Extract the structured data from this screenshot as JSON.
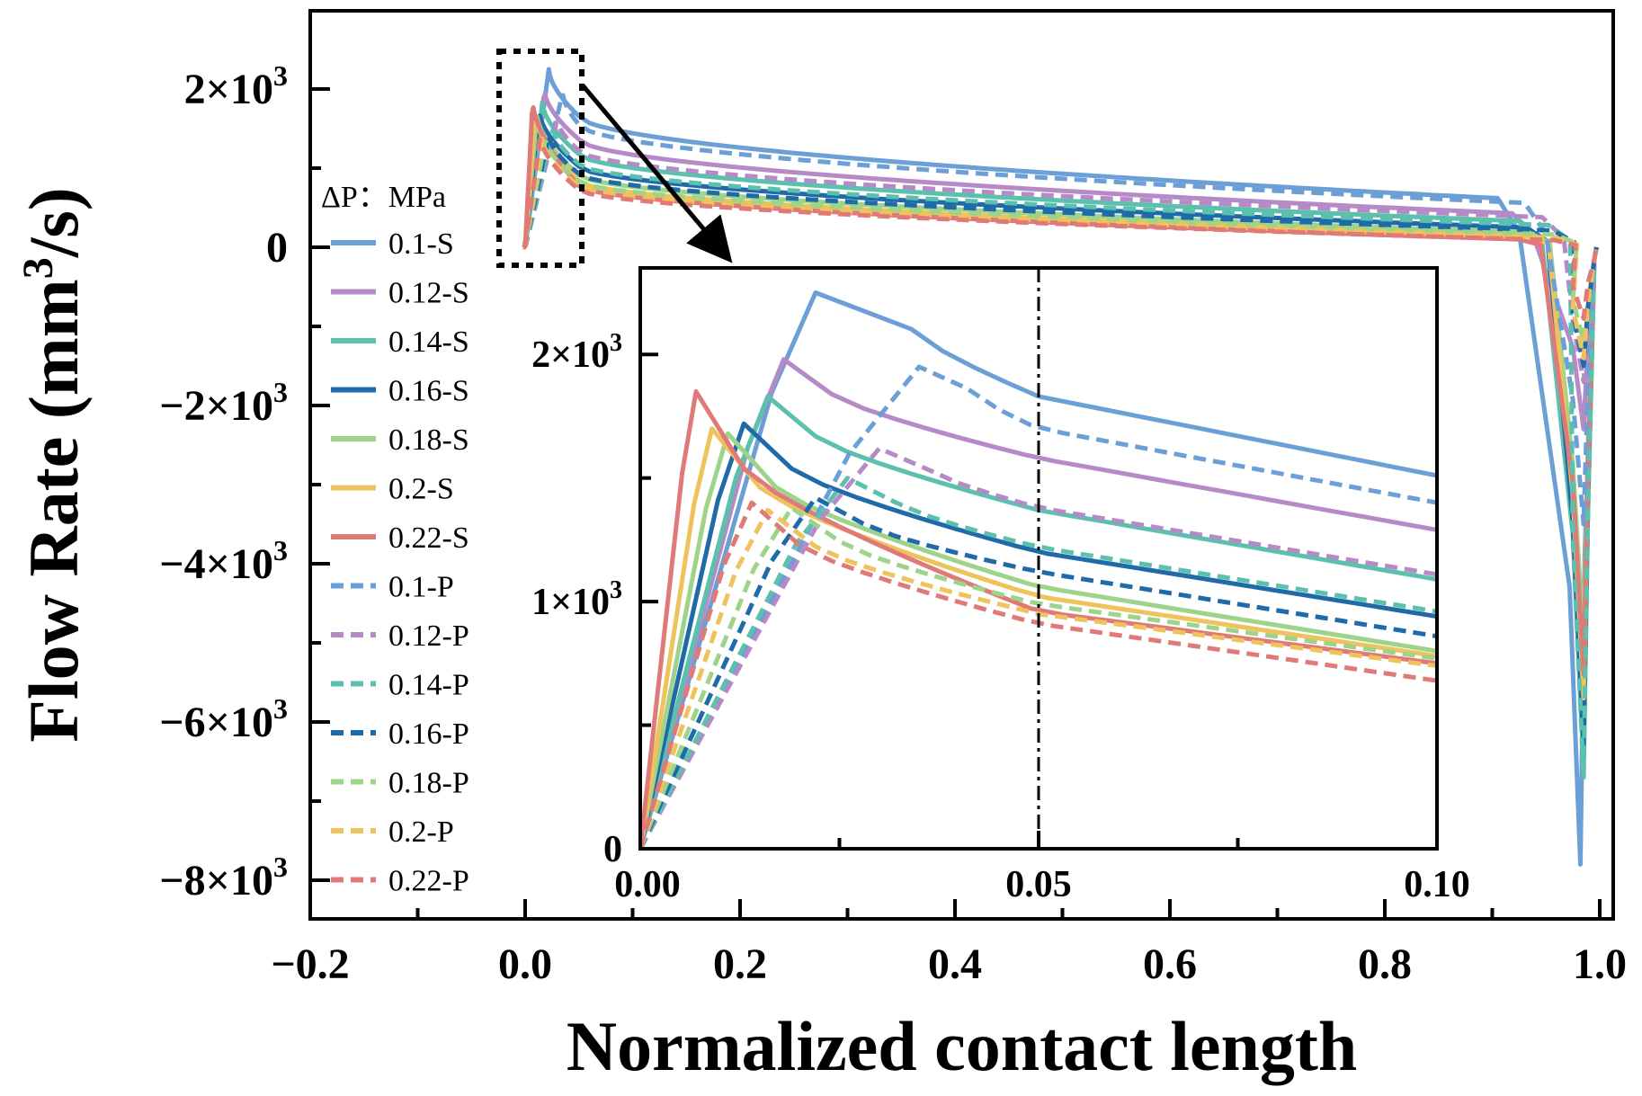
{
  "chart_data": [
    {
      "id": "main",
      "type": "line",
      "xlabel": "Normalized contact length",
      "ylabel": "Flow Rate (mm³/s)",
      "xlim": [
        -0.2,
        1.0
      ],
      "ylim": [
        -8500,
        3100
      ],
      "x_ticks": [
        -0.2,
        0.0,
        0.2,
        0.4,
        0.6,
        0.8,
        1.0
      ],
      "x_tick_labels": [
        "−0.2",
        "0.0",
        "0.2",
        "0.4",
        "0.6",
        "0.8",
        "1.0"
      ],
      "y_ticks": [
        2000,
        0,
        -2000,
        -4000,
        -6000,
        -8000
      ],
      "y_tick_labels": [
        {
          "mant": "2×10",
          "exp": "3"
        },
        {
          "mant": "0",
          "exp": ""
        },
        {
          "mant": "−2×10",
          "exp": "3"
        },
        {
          "mant": "−4×10",
          "exp": "3"
        },
        {
          "mant": "−6×10",
          "exp": "3"
        },
        {
          "mant": "−8×10",
          "exp": "3"
        }
      ],
      "grid": false,
      "legend_title": "ΔP：MPa",
      "legend_position": "left",
      "series": [
        {
          "name": "0.1-S",
          "color": "#6b9fd6",
          "dash": "solid",
          "peak": 2250,
          "peak_x": 0.022,
          "level": 1070,
          "end": 620,
          "min": -7800
        },
        {
          "name": "0.12-S",
          "color": "#b58ac6",
          "dash": "solid",
          "peak": 1980,
          "peak_x": 0.018,
          "level": 880,
          "end": 430,
          "min": -2300
        },
        {
          "name": "0.14-S",
          "color": "#5cc0ae",
          "dash": "solid",
          "peak": 1830,
          "peak_x": 0.016,
          "level": 760,
          "end": 330,
          "min": -6600
        },
        {
          "name": "0.16-S",
          "color": "#1f6aa8",
          "dash": "solid",
          "peak": 1720,
          "peak_x": 0.013,
          "level": 660,
          "end": 250,
          "min": -6300
        },
        {
          "name": "0.18-S",
          "color": "#9ed38a",
          "dash": "solid",
          "peak": 1680,
          "peak_x": 0.011,
          "level": 590,
          "end": 190,
          "min": -5000
        },
        {
          "name": "0.2-S",
          "color": "#efc35c",
          "dash": "solid",
          "peak": 1700,
          "peak_x": 0.009,
          "level": 540,
          "end": 140,
          "min": -5700
        },
        {
          "name": "0.22-S",
          "color": "#e07a78",
          "dash": "solid",
          "peak": 1850,
          "peak_x": 0.007,
          "level": 500,
          "end": 100,
          "min": -5400
        },
        {
          "name": "0.1-P",
          "color": "#6b9fd6",
          "dash": "dashed",
          "peak": 1950,
          "peak_x": 0.035,
          "level": 1000,
          "end": 560,
          "min": -3500
        },
        {
          "name": "0.12-P",
          "color": "#b58ac6",
          "dash": "dashed",
          "peak": 1620,
          "peak_x": 0.03,
          "level": 790,
          "end": 380,
          "min": -1700
        },
        {
          "name": "0.14-P",
          "color": "#5cc0ae",
          "dash": "dashed",
          "peak": 1500,
          "peak_x": 0.026,
          "level": 680,
          "end": 280,
          "min": -6700
        },
        {
          "name": "0.16-P",
          "color": "#1f6aa8",
          "dash": "dashed",
          "peak": 1420,
          "peak_x": 0.022,
          "level": 600,
          "end": 210,
          "min": -1500
        },
        {
          "name": "0.18-P",
          "color": "#9ed38a",
          "dash": "dashed",
          "peak": 1380,
          "peak_x": 0.019,
          "level": 540,
          "end": 160,
          "min": -1200
        },
        {
          "name": "0.2-P",
          "color": "#efc35c",
          "dash": "dashed",
          "peak": 1370,
          "peak_x": 0.016,
          "level": 500,
          "end": 120,
          "min": -1400
        },
        {
          "name": "0.22-P",
          "color": "#e07a78",
          "dash": "dashed",
          "peak": 1400,
          "peak_x": 0.014,
          "level": 470,
          "end": 90,
          "min": -900
        }
      ]
    },
    {
      "id": "inset",
      "type": "line",
      "xlim": [
        0,
        0.1
      ],
      "ylim": [
        0,
        2350
      ],
      "x_ticks": [
        0.0,
        0.05,
        0.1
      ],
      "x_tick_labels": [
        "0.00",
        "0.05",
        "0.10"
      ],
      "y_ticks": [
        0,
        1000,
        2000
      ],
      "y_tick_labels": [
        {
          "mant": "0",
          "exp": ""
        },
        {
          "mant": "1×10",
          "exp": "3"
        },
        {
          "mant": "2×10",
          "exp": "3"
        }
      ],
      "reference_line_x": 0.05,
      "values_at": [
        0.05,
        0.1
      ],
      "series_values": [
        {
          "name": "0.1-S",
          "at_005": 1830,
          "at_010": 1510
        },
        {
          "name": "0.12-S",
          "at_005": 1580,
          "at_010": 1290
        },
        {
          "name": "0.14-S",
          "at_005": 1370,
          "at_010": 1090
        },
        {
          "name": "0.16-S",
          "at_005": 1200,
          "at_010": 940
        },
        {
          "name": "0.18-S",
          "at_005": 1060,
          "at_010": 800
        },
        {
          "name": "0.2-S",
          "at_005": 1020,
          "at_010": 780
        },
        {
          "name": "0.22-S",
          "at_005": 960,
          "at_010": 750
        },
        {
          "name": "0.1-P",
          "at_005": 1700,
          "at_010": 1400
        },
        {
          "name": "0.12-P",
          "at_005": 1380,
          "at_010": 1110
        },
        {
          "name": "0.14-P",
          "at_005": 1220,
          "at_010": 960
        },
        {
          "name": "0.16-P",
          "at_005": 1120,
          "at_010": 860
        },
        {
          "name": "0.18-P",
          "at_005": 990,
          "at_010": 770
        },
        {
          "name": "0.2-P",
          "at_005": 950,
          "at_010": 740
        },
        {
          "name": "0.22-P",
          "at_005": 910,
          "at_010": 680
        }
      ]
    }
  ]
}
